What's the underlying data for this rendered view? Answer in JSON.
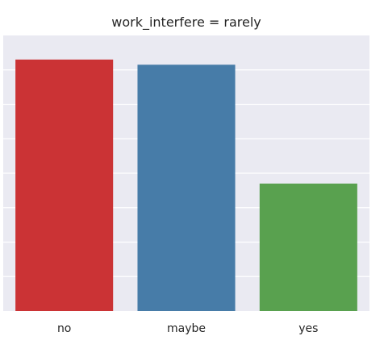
{
  "chart_data": {
    "type": "bar",
    "title": "work_interfere = rarely",
    "categories": [
      "no",
      "maybe",
      "yes"
    ],
    "values": [
      73,
      71.5,
      37
    ],
    "colors": [
      "#cb3335",
      "#477ca8",
      "#59a14f"
    ],
    "xlabel": "",
    "ylabel": "",
    "ylim": [
      0,
      80
    ],
    "grid": true,
    "legend": "none"
  }
}
